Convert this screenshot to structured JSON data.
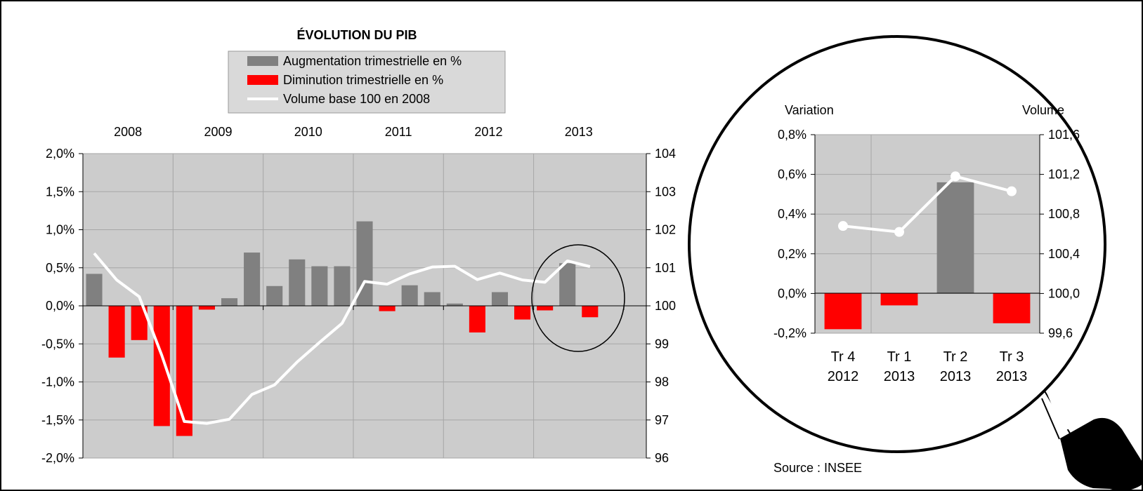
{
  "title": "ÉVOLUTION DU PIB",
  "legend": [
    {
      "label": "Augmentation trimestrielle en %",
      "kind": "bar",
      "color": "#808080"
    },
    {
      "label": "Diminution trimestrielle en %",
      "kind": "bar",
      "color": "#ff0000"
    },
    {
      "label": "Volume base 100 en 2008",
      "kind": "line",
      "color": "#ffffff"
    }
  ],
  "source": "Source : INSEE",
  "colors": {
    "positive": "#808080",
    "negative": "#ff0000",
    "line": "#ffffff",
    "plot_bg": "#cccccc",
    "gridline": "#a6a6a6"
  },
  "chart_data": [
    {
      "type": "bar",
      "title": "ÉVOLUTION DU PIB",
      "year_labels": [
        "2008",
        "2009",
        "2010",
        "2011",
        "2012",
        "2013"
      ],
      "left_axis": {
        "ylim": [
          -2.0,
          2.0
        ],
        "ticks": [
          "-2,0%",
          "-1,5%",
          "-1,0%",
          "-0,5%",
          "0,0%",
          "0,5%",
          "1,0%",
          "1,5%",
          "2,0%"
        ]
      },
      "right_axis": {
        "ylim": [
          96,
          104
        ],
        "ticks": [
          "96",
          "97",
          "98",
          "99",
          "100",
          "101",
          "102",
          "103",
          "104"
        ]
      },
      "grid": true,
      "series": [
        {
          "name": "Augmentation trimestrielle en % / Diminution trimestrielle en %",
          "type": "bar",
          "axis": "left",
          "values": [
            0.42,
            -0.68,
            -0.45,
            -1.58,
            -1.71,
            -0.05,
            0.1,
            0.7,
            0.26,
            0.61,
            0.52,
            0.52,
            1.11,
            -0.07,
            0.27,
            0.18,
            0.03,
            -0.35,
            0.18,
            -0.18,
            -0.06,
            0.56,
            -0.15
          ]
        },
        {
          "name": "Volume base 100 en 2008",
          "type": "line",
          "axis": "right",
          "values": [
            101.38,
            100.68,
            100.24,
            98.7,
            96.96,
            96.91,
            97.02,
            97.67,
            97.92,
            98.52,
            99.04,
            99.54,
            100.64,
            100.57,
            100.84,
            101.02,
            101.04,
            100.69,
            100.86,
            100.68,
            100.62,
            101.18,
            101.03
          ]
        }
      ]
    },
    {
      "type": "bar",
      "left_axis": {
        "label": "Variation",
        "ylim": [
          -0.2,
          0.8
        ],
        "ticks": [
          "-0,2%",
          "0,0%",
          "0,2%",
          "0,4%",
          "0,6%",
          "0,8%"
        ]
      },
      "right_axis": {
        "label": "Volume",
        "ylim": [
          99.6,
          101.6
        ],
        "ticks": [
          "99,6",
          "100,0",
          "100,4",
          "100,8",
          "101,2",
          "101,6"
        ]
      },
      "categories": [
        [
          "Tr 4",
          "2012"
        ],
        [
          "Tr 1",
          "2013"
        ],
        [
          "Tr 2",
          "2013"
        ],
        [
          "Tr 3",
          "2013"
        ]
      ],
      "grid": true,
      "series": [
        {
          "name": "Augmentation trimestrielle en % / Diminution trimestrielle en %",
          "type": "bar",
          "axis": "left",
          "values": [
            -0.18,
            -0.06,
            0.56,
            -0.15
          ]
        },
        {
          "name": "Volume base 100 en 2008",
          "type": "line",
          "axis": "right",
          "values": [
            100.68,
            100.62,
            101.18,
            101.03
          ]
        }
      ]
    }
  ]
}
